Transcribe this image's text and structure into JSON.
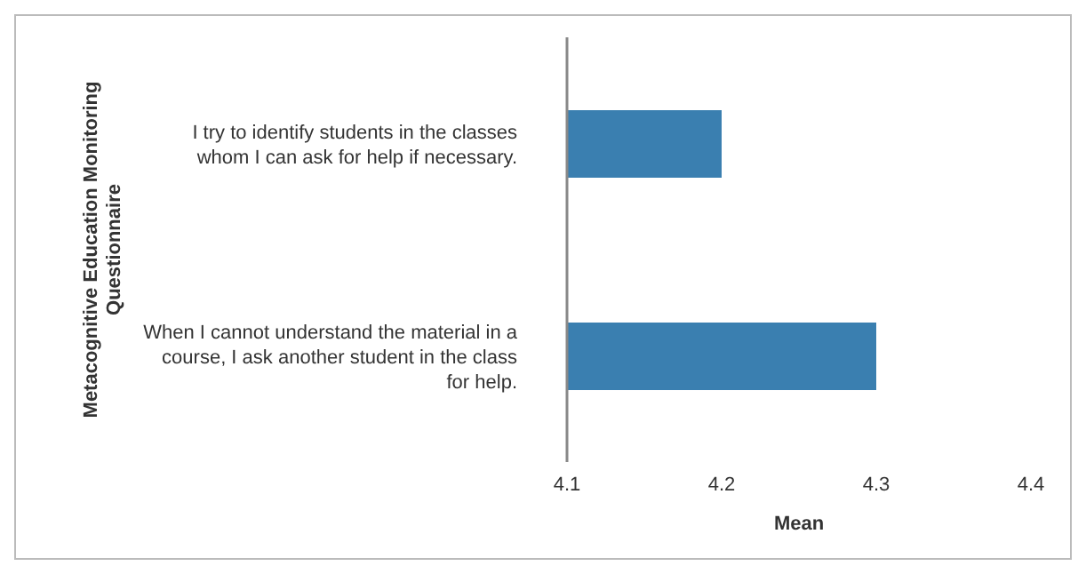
{
  "chart_data": {
    "type": "bar",
    "orientation": "horizontal",
    "ylabel": "Metacognitive Education Monitoring Questionnaire",
    "xlabel": "Mean",
    "categories": [
      "I try to identify students in the classes whom I can ask for help if necessary.",
      "When I cannot understand the material in a course, I ask another student in the class for help."
    ],
    "values": [
      4.2,
      4.3
    ],
    "color": "#3a7fb0",
    "xlim": [
      4.1,
      4.4
    ],
    "xticks": [
      4.1,
      4.2,
      4.3,
      4.4
    ],
    "grid": false,
    "legend": false
  }
}
